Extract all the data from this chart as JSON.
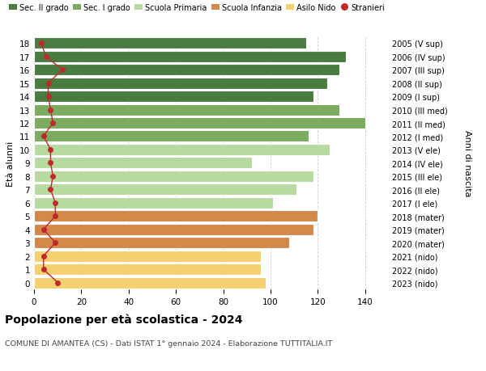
{
  "ages": [
    18,
    17,
    16,
    15,
    14,
    13,
    12,
    11,
    10,
    9,
    8,
    7,
    6,
    5,
    4,
    3,
    2,
    1,
    0
  ],
  "years": [
    "2005 (V sup)",
    "2006 (IV sup)",
    "2007 (III sup)",
    "2008 (II sup)",
    "2009 (I sup)",
    "2010 (III med)",
    "2011 (II med)",
    "2012 (I med)",
    "2013 (V ele)",
    "2014 (IV ele)",
    "2015 (III ele)",
    "2016 (II ele)",
    "2017 (I ele)",
    "2018 (mater)",
    "2019 (mater)",
    "2020 (mater)",
    "2021 (nido)",
    "2022 (nido)",
    "2023 (nido)"
  ],
  "values": [
    115,
    132,
    129,
    124,
    118,
    129,
    140,
    116,
    125,
    92,
    118,
    111,
    101,
    120,
    118,
    108,
    96,
    96,
    98
  ],
  "stranieri": [
    3,
    5,
    12,
    6,
    6,
    7,
    8,
    4,
    7,
    7,
    8,
    7,
    9,
    9,
    4,
    9,
    4,
    4,
    10
  ],
  "bar_colors": [
    "#4a7c40",
    "#4a7c40",
    "#4a7c40",
    "#4a7c40",
    "#4a7c40",
    "#7aab5e",
    "#7aab5e",
    "#7aab5e",
    "#b8d9a0",
    "#b8d9a0",
    "#b8d9a0",
    "#b8d9a0",
    "#b8d9a0",
    "#d4884a",
    "#d4884a",
    "#d4884a",
    "#f5d070",
    "#f5d070",
    "#f5d070"
  ],
  "legend_labels": [
    "Sec. II grado",
    "Sec. I grado",
    "Scuola Primaria",
    "Scuola Infanzia",
    "Asilo Nido",
    "Stranieri"
  ],
  "legend_colors": [
    "#4a7c40",
    "#7aab5e",
    "#b8d9a0",
    "#d4884a",
    "#f5d070",
    "#c0292b"
  ],
  "stranieri_color": "#c0292b",
  "title": "Popolazione per età scolastica - 2024",
  "subtitle": "COMUNE DI AMANTEA (CS) - Dati ISTAT 1° gennaio 2024 - Elaborazione TUTTITALIA.IT",
  "ylabel_left": "Età alunni",
  "ylabel_right": "Anni di nascita",
  "xlim": [
    0,
    150
  ],
  "xticks": [
    0,
    20,
    40,
    60,
    80,
    100,
    120,
    140
  ],
  "background_color": "#ffffff",
  "grid_color": "#d0d0d0"
}
